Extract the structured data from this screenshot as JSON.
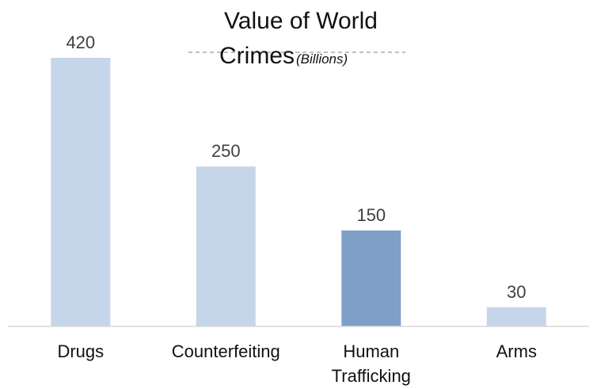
{
  "chart_data": {
    "type": "bar",
    "title": "Value of World Crimes",
    "subtitle": "(Billions)",
    "categories": [
      "Drugs",
      "Counterfeiting",
      "Human Trafficking",
      "Arms"
    ],
    "values": [
      420,
      250,
      150,
      30
    ],
    "ylim": [
      0,
      420
    ],
    "xlabel": "",
    "ylabel": "",
    "grid": false,
    "legend": "none",
    "highlight_category": "Human Trafficking",
    "colors": {
      "bar": "#c5d6ea",
      "highlight": "#7f9fc8",
      "axis": "#d9d9d9",
      "title_rule": "#7f7f7f"
    }
  }
}
